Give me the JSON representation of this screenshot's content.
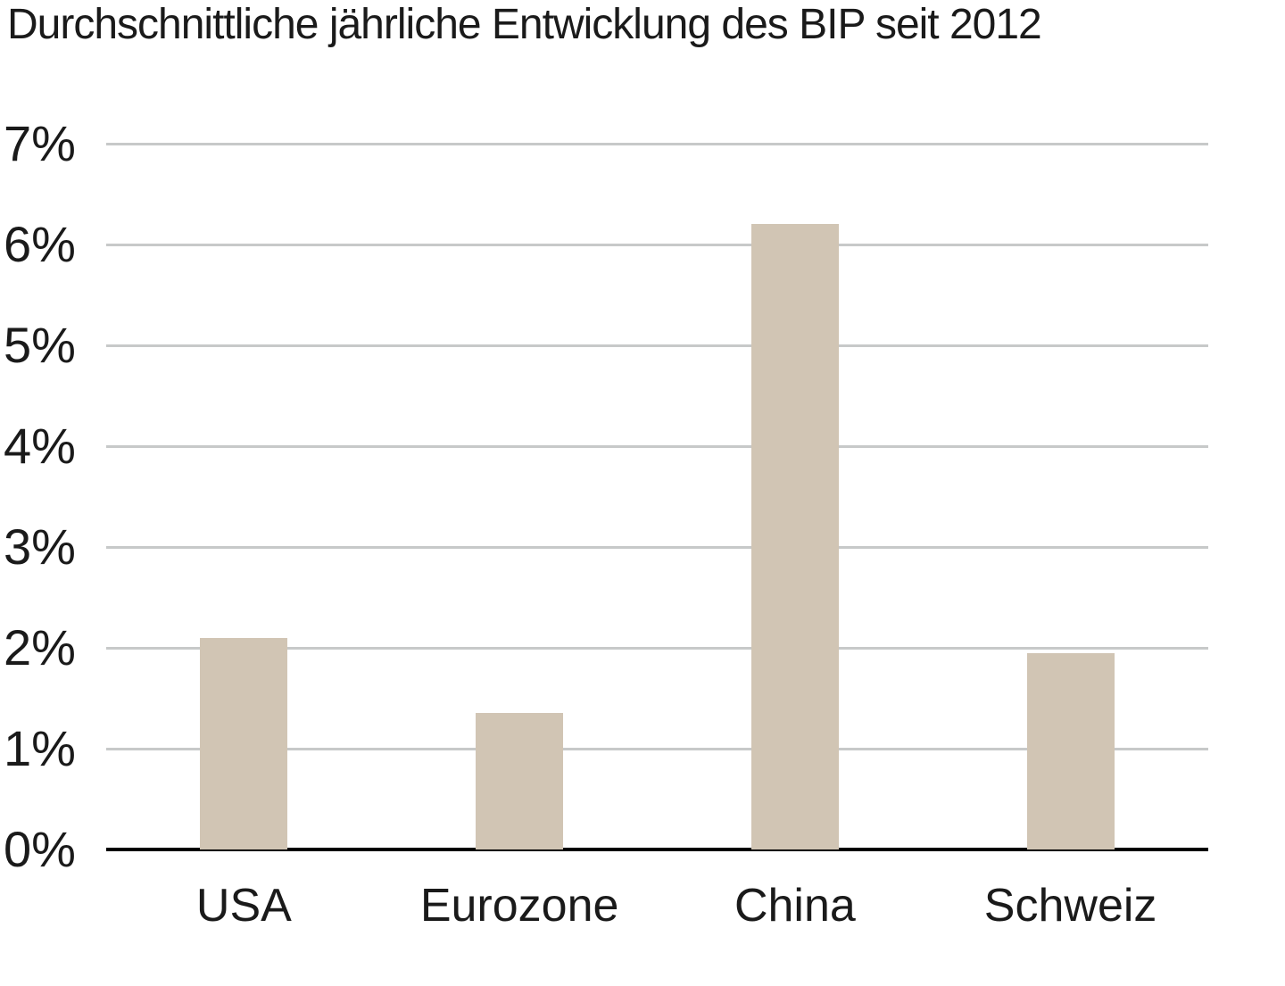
{
  "chart_data": {
    "type": "bar",
    "title": "Durchschnittliche jährliche Entwicklung des BIP seit 2012",
    "categories": [
      "USA",
      "Eurozone",
      "China",
      "Schweiz"
    ],
    "values": [
      2.1,
      1.35,
      6.2,
      1.95
    ],
    "unit": "%",
    "xlabel": "",
    "ylabel": "",
    "ylim": [
      0,
      7
    ],
    "ytick_step": 1,
    "ytick_labels": [
      "0%",
      "1%",
      "2%",
      "3%",
      "4%",
      "5%",
      "6%",
      "7%"
    ],
    "grid": true,
    "legend": false,
    "colors": {
      "bar": "#d1c5b4",
      "gridline": "#c7c9c9",
      "axis": "#000000",
      "text": "#1a1a1a",
      "background": "#ffffff"
    }
  }
}
